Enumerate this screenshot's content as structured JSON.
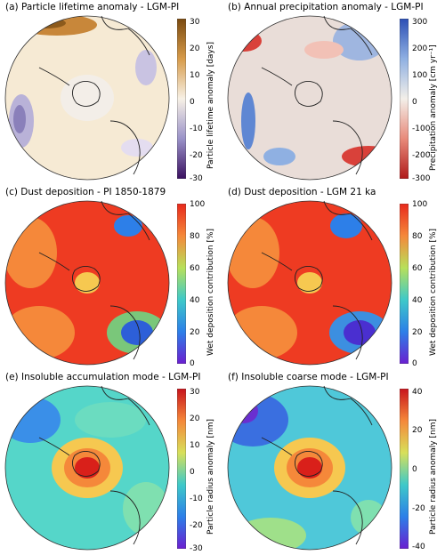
{
  "panels": [
    {
      "title": "(a) Particle lifetime anomaly - LGM-PI",
      "cbar_label": "Particle lifetime anomaly [days]",
      "ticks": [
        "30",
        "20",
        "10",
        "0",
        "-10",
        "-20",
        "-30"
      ],
      "cmap": "brbg_rev",
      "extend": "both"
    },
    {
      "title": "(b) Annual precipitation anomaly - LGM-PI",
      "cbar_label": "Precipitation anomaly [cm yr⁻¹]",
      "ticks": [
        "300",
        "200",
        "100",
        "0",
        "-100",
        "-200",
        "-300"
      ],
      "cmap": "rdblue",
      "extend": "both"
    },
    {
      "title": "(c) Dust deposition - PI 1850-1879",
      "cbar_label": "Wet deposition contribution [%]",
      "ticks": [
        "100",
        "80",
        "60",
        "40",
        "20",
        "0"
      ],
      "cmap": "rainbow",
      "extend": "none"
    },
    {
      "title": "(d) Dust deposition - LGM 21 ka",
      "cbar_label": "Wet deposition contribution [%]",
      "ticks": [
        "100",
        "80",
        "60",
        "40",
        "20",
        "0"
      ],
      "cmap": "rainbow",
      "extend": "none"
    },
    {
      "title": "(e) Insoluble accumulation mode - LGM-PI",
      "cbar_label": "Particle radius anomaly [nm]",
      "ticks": [
        "30",
        "20",
        "10",
        "0",
        "-10",
        "-20",
        "-30"
      ],
      "cmap": "rainbow",
      "extend": "both"
    },
    {
      "title": "(f) Insoluble coarse mode - LGM-PI",
      "cbar_label": "Particle radius anomaly [nm]",
      "ticks": [
        "40",
        "20",
        "0",
        "-20",
        "-40"
      ],
      "cmap": "rainbow",
      "extend": "both"
    }
  ]
}
